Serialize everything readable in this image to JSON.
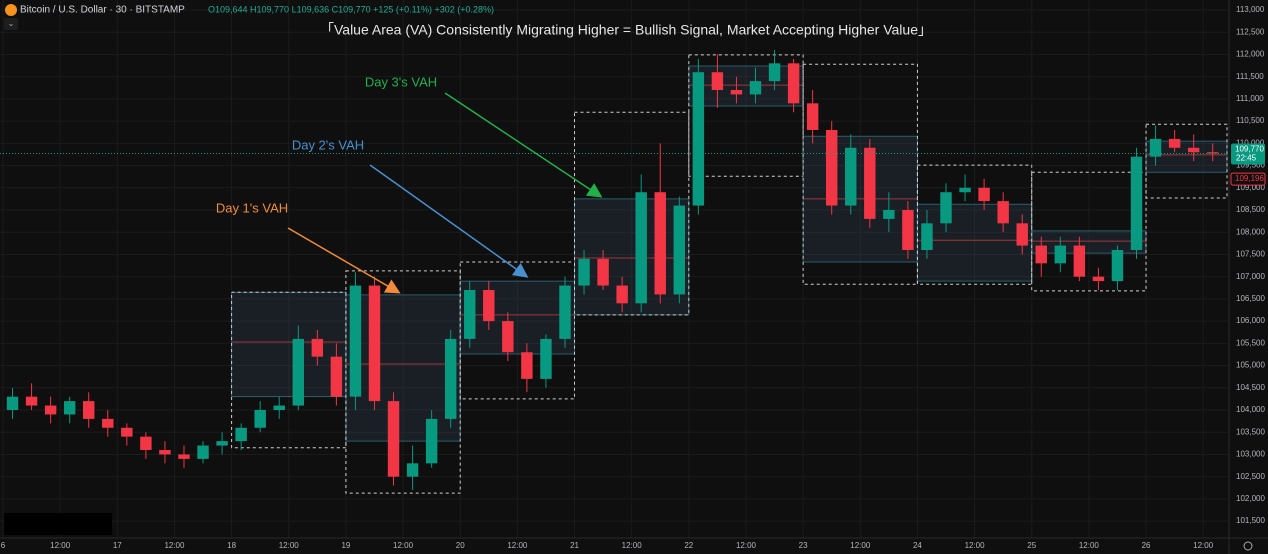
{
  "header": {
    "symbol": "Bitcoin / U.S. Dollar · 30 · BITSTAMP",
    "ohlc": "O109,644 H109,770 L109,636 C109,770 +125 (+0.11%) +302 (+0.28%)"
  },
  "chart_data": {
    "type": "candlestick",
    "title": "「Value Area (VA) Consistently Migrating Higher = Bullish Signal, Market Accepting Higher Value」",
    "annotations": [
      {
        "text": "Day 1's VAH",
        "color": "#f28b3b"
      },
      {
        "text": "Day 2's VAH",
        "color": "#4a8fd0"
      },
      {
        "text": "Day 3's VAH",
        "color": "#22b04b"
      }
    ],
    "up_color": "#089981",
    "down_color": "#f23645",
    "x": [
      0,
      4,
      8,
      12,
      16,
      20,
      24,
      28,
      32,
      36,
      40,
      44,
      48,
      52,
      56,
      60,
      64,
      68,
      72,
      76,
      80,
      84,
      88,
      92,
      96,
      100,
      104,
      108,
      112,
      116,
      120,
      124,
      128,
      132,
      136,
      140,
      144,
      148,
      152,
      156,
      160,
      164,
      168,
      172,
      176,
      180,
      184,
      188,
      192,
      196,
      200,
      204,
      208,
      212,
      216,
      220,
      224,
      228,
      232,
      236,
      240,
      244,
      248,
      252
    ],
    "open": [
      104000,
      104300,
      104100,
      103900,
      104200,
      103800,
      103600,
      103400,
      103100,
      103000,
      102900,
      103200,
      103300,
      103600,
      104000,
      104100,
      105600,
      105200,
      104300,
      106800,
      104200,
      102500,
      102800,
      103800,
      105600,
      106700,
      106000,
      105300,
      104700,
      105600,
      106800,
      107400,
      106800,
      106400,
      108900,
      106600,
      108600,
      111600,
      111200,
      111100,
      111400,
      111800,
      110900,
      110300,
      108600,
      109900,
      108300,
      108500,
      107600,
      108200,
      108900,
      109000,
      108700,
      108200,
      107700,
      107300,
      107700,
      107000,
      106900,
      107600,
      109700,
      110100,
      109900,
      109800
    ],
    "high": [
      104500,
      104600,
      104300,
      104300,
      104400,
      104000,
      103700,
      103500,
      103300,
      103200,
      103300,
      103500,
      103700,
      104200,
      104300,
      105900,
      105800,
      105500,
      107100,
      107000,
      104400,
      103200,
      104000,
      105800,
      106900,
      106900,
      106200,
      105500,
      105700,
      107000,
      107600,
      107600,
      107000,
      109300,
      110000,
      108800,
      111900,
      112000,
      111500,
      111700,
      112100,
      111900,
      111200,
      110500,
      110200,
      110100,
      108900,
      108700,
      108500,
      109100,
      109300,
      109200,
      108900,
      108400,
      107900,
      107900,
      107900,
      107200,
      107700,
      109900,
      110400,
      110300,
      110200,
      110000
    ],
    "low": [
      103800,
      104000,
      103700,
      103700,
      103600,
      103400,
      103200,
      102900,
      102800,
      102700,
      102800,
      103000,
      103100,
      103500,
      103800,
      104000,
      105000,
      104100,
      104000,
      104000,
      102300,
      102200,
      102700,
      103600,
      105400,
      105800,
      105100,
      104400,
      104500,
      105400,
      106600,
      106700,
      106200,
      106200,
      106400,
      106400,
      108400,
      110800,
      110900,
      110900,
      111200,
      110700,
      110000,
      108400,
      108400,
      108100,
      108000,
      107400,
      107400,
      108000,
      108700,
      108500,
      108000,
      107500,
      107000,
      107100,
      106900,
      106700,
      106700,
      107400,
      109500,
      109800,
      109600,
      109600
    ],
    "close": [
      104300,
      104100,
      103900,
      104200,
      103800,
      103600,
      103400,
      103100,
      103000,
      102900,
      103200,
      103300,
      103600,
      104000,
      104100,
      105600,
      105200,
      104300,
      106800,
      104200,
      102500,
      102800,
      103800,
      105600,
      106700,
      106000,
      105300,
      104700,
      105600,
      106800,
      107400,
      106800,
      106400,
      108900,
      106600,
      108600,
      111600,
      111200,
      111100,
      111400,
      111800,
      110900,
      110300,
      108600,
      109900,
      108300,
      108500,
      107600,
      108200,
      108900,
      109000,
      108700,
      108200,
      107700,
      107300,
      107700,
      107000,
      106900,
      107600,
      109700,
      110100,
      109900,
      109800,
      109770
    ],
    "sessions": [
      {
        "start": 48,
        "end": 72,
        "high": 106650,
        "low": 103150,
        "vah": 106650,
        "val": 104300,
        "poc": 105530
      },
      {
        "start": 72,
        "end": 96,
        "high": 107130,
        "low": 102130,
        "vah": 106590,
        "val": 103300,
        "poc": 105035
      },
      {
        "start": 96,
        "end": 120,
        "high": 107330,
        "low": 104250,
        "vah": 106900,
        "val": 105260,
        "poc": 106140
      },
      {
        "start": 120,
        "end": 144,
        "high": 110700,
        "low": 106140,
        "vah": 108750,
        "val": 106140,
        "poc": 107420
      },
      {
        "start": 144,
        "end": 168,
        "high": 111990,
        "low": 109260,
        "vah": 111740,
        "val": 110840,
        "poc": 111310
      },
      {
        "start": 168,
        "end": 192,
        "high": 111780,
        "low": 106830,
        "vah": 110160,
        "val": 107330,
        "poc": 108750
      },
      {
        "start": 192,
        "end": 216,
        "high": 109510,
        "low": 106830,
        "vah": 108630,
        "val": 106900,
        "poc": 107820
      },
      {
        "start": 216,
        "end": 240,
        "high": 109350,
        "low": 106680,
        "vah": 108030,
        "val": 107530,
        "poc": 107800
      },
      {
        "start": 240,
        "end": 257,
        "high": 110430,
        "low": 108770,
        "vah": 110050,
        "val": 109350,
        "poc": 109740
      }
    ],
    "xlim": [
      0,
      257
    ],
    "xticks": [
      {
        "value": 0,
        "label": "6"
      },
      {
        "value": 12,
        "label": "12:00"
      },
      {
        "value": 24,
        "label": "17"
      },
      {
        "value": 36,
        "label": "12:00"
      },
      {
        "value": 48,
        "label": "18"
      },
      {
        "value": 60,
        "label": "12:00"
      },
      {
        "value": 72,
        "label": "19"
      },
      {
        "value": 84,
        "label": "12:00"
      },
      {
        "value": 96,
        "label": "20"
      },
      {
        "value": 108,
        "label": "12:00"
      },
      {
        "value": 120,
        "label": "21"
      },
      {
        "value": 132,
        "label": "12:00"
      },
      {
        "value": 144,
        "label": "22"
      },
      {
        "value": 156,
        "label": "12:00"
      },
      {
        "value": 168,
        "label": "23"
      },
      {
        "value": 180,
        "label": "12:00"
      },
      {
        "value": 192,
        "label": "24"
      },
      {
        "value": 204,
        "label": "12:00"
      },
      {
        "value": 216,
        "label": "25"
      },
      {
        "value": 228,
        "label": "12:00"
      },
      {
        "value": 240,
        "label": "26"
      },
      {
        "value": 252,
        "label": "12:00"
      }
    ],
    "ylim": [
      101120,
      113225
    ],
    "yticks": [
      {
        "value": 101500,
        "label": "101,500"
      },
      {
        "value": 102000,
        "label": "102,000"
      },
      {
        "value": 102500,
        "label": "102,500"
      },
      {
        "value": 103000,
        "label": "103,000"
      },
      {
        "value": 103500,
        "label": "103,500"
      },
      {
        "value": 104000,
        "label": "104,000"
      },
      {
        "value": 104500,
        "label": "104,500"
      },
      {
        "value": 105000,
        "label": "105,000"
      },
      {
        "value": 105500,
        "label": "105,500"
      },
      {
        "value": 106000,
        "label": "106,000"
      },
      {
        "value": 106500,
        "label": "106,500"
      },
      {
        "value": 107000,
        "label": "107,000"
      },
      {
        "value": 107500,
        "label": "107,500"
      },
      {
        "value": 108000,
        "label": "108,000"
      },
      {
        "value": 108500,
        "label": "108,500"
      },
      {
        "value": 109000,
        "label": "109,000"
      },
      {
        "value": 109500,
        "label": "109,500"
      },
      {
        "value": 110000,
        "label": "110,000"
      },
      {
        "value": 110500,
        "label": "110,500"
      },
      {
        "value": 111000,
        "label": "111,000"
      },
      {
        "value": 111500,
        "label": "111,500"
      },
      {
        "value": 112000,
        "label": "112,000"
      },
      {
        "value": 112500,
        "label": "112,500"
      },
      {
        "value": 113000,
        "label": "113,000"
      }
    ],
    "grid": true,
    "price_tag": {
      "value": 109770,
      "label": "109,770",
      "time": "22:45"
    },
    "alert": {
      "value": 109196,
      "label": "109,196"
    }
  }
}
